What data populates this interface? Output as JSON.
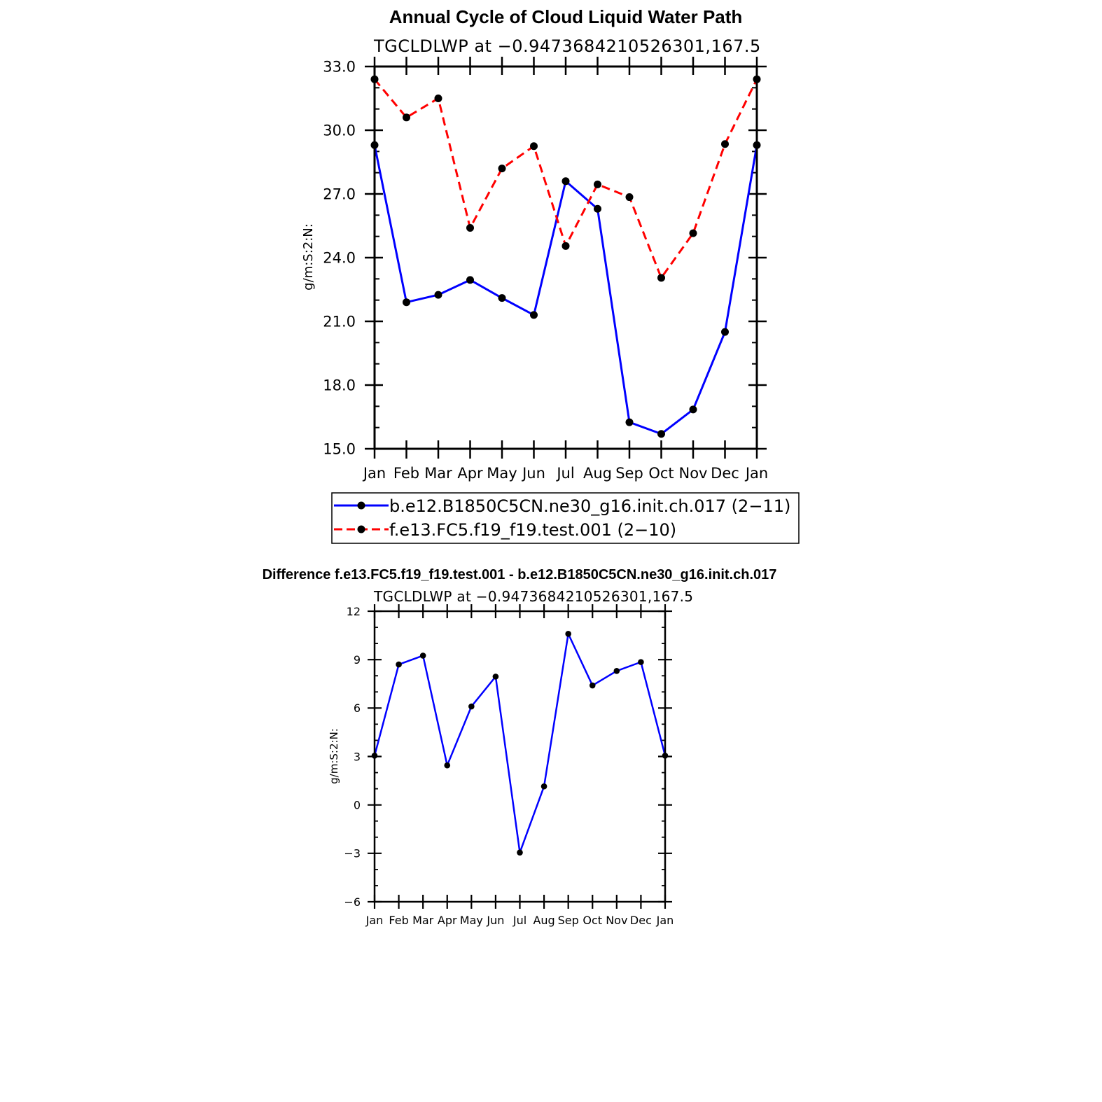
{
  "chart_data": [
    {
      "type": "line",
      "title": "Annual Cycle of Cloud Liquid Water Path",
      "subtitle": "TGCLDLWP at −0.9473684210526301,167.5",
      "ylabel": "g/m:S:2:N:",
      "xlabel": "",
      "categories": [
        "Jan",
        "Feb",
        "Mar",
        "Apr",
        "May",
        "Jun",
        "Jul",
        "Aug",
        "Sep",
        "Oct",
        "Nov",
        "Dec",
        "Jan"
      ],
      "ylim": [
        15.0,
        33.0
      ],
      "yticks": [
        "15.0",
        "18.0",
        "21.0",
        "24.0",
        "27.0",
        "30.0",
        "33.0"
      ],
      "legend_position": "bottom",
      "series": [
        {
          "name": "b.e12.B1850C5CN.ne30_g16.init.ch.017 (2−11)",
          "color": "#0000ff",
          "dash": "solid",
          "values": [
            29.3,
            21.9,
            22.25,
            22.95,
            22.1,
            21.3,
            27.6,
            26.3,
            16.25,
            15.7,
            16.85,
            20.5,
            29.3
          ]
        },
        {
          "name": "f.e13.FC5.f19_f19.test.001 (2−10)",
          "color": "#ff0000",
          "dash": "dashed",
          "values": [
            32.4,
            30.6,
            31.5,
            25.4,
            28.2,
            29.25,
            24.55,
            27.45,
            26.85,
            23.05,
            25.15,
            29.35,
            32.4
          ]
        }
      ]
    },
    {
      "type": "line",
      "title": "Difference f.e13.FC5.f19_f19.test.001 - b.e12.B1850C5CN.ne30_g16.init.ch.017",
      "subtitle": "TGCLDLWP at −0.9473684210526301,167.5",
      "ylabel": "g/m:S:2:N:",
      "xlabel": "",
      "categories": [
        "Jan",
        "Feb",
        "Mar",
        "Apr",
        "May",
        "Jun",
        "Jul",
        "Aug",
        "Sep",
        "Oct",
        "Nov",
        "Dec",
        "Jan"
      ],
      "ylim": [
        -6,
        12
      ],
      "yticks": [
        "−6",
        "−3",
        "0",
        "3",
        "6",
        "9",
        "12"
      ],
      "series": [
        {
          "color": "#0000ff",
          "dash": "solid",
          "values": [
            3.05,
            8.7,
            9.25,
            2.45,
            6.1,
            7.95,
            -2.95,
            1.15,
            10.6,
            7.4,
            8.3,
            8.85,
            3.05
          ]
        }
      ]
    }
  ]
}
